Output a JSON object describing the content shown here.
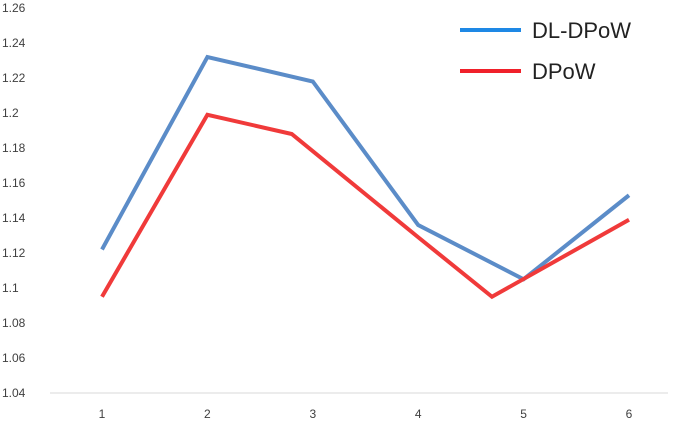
{
  "chart_data": {
    "type": "line",
    "title": "",
    "xlabel": "",
    "ylabel": "",
    "categories": [
      "1",
      "2",
      "3",
      "4",
      "5",
      "6"
    ],
    "ylim": [
      1.04,
      1.26
    ],
    "y_ticks": [
      "1.26",
      "1.24",
      "1.22",
      "1.2",
      "1.18",
      "1.16",
      "1.14",
      "1.12",
      "1.1",
      "1.08",
      "1.06",
      "1.04"
    ],
    "grid": false,
    "legend_position": "top-right",
    "series": [
      {
        "name": "DL-DPoW",
        "color": "#5B8CC8",
        "legend_color": "#1E88E5",
        "x": [
          1,
          2,
          3,
          4,
          5,
          6
        ],
        "values": [
          1.122,
          1.232,
          1.218,
          1.136,
          1.105,
          1.153
        ]
      },
      {
        "name": "DPoW",
        "color": "#F03A3A",
        "legend_color": "#F0202A",
        "x": [
          1,
          2,
          2.8,
          4,
          4.7,
          6
        ],
        "values": [
          1.095,
          1.199,
          1.188,
          1.129,
          1.095,
          1.139
        ]
      }
    ]
  }
}
